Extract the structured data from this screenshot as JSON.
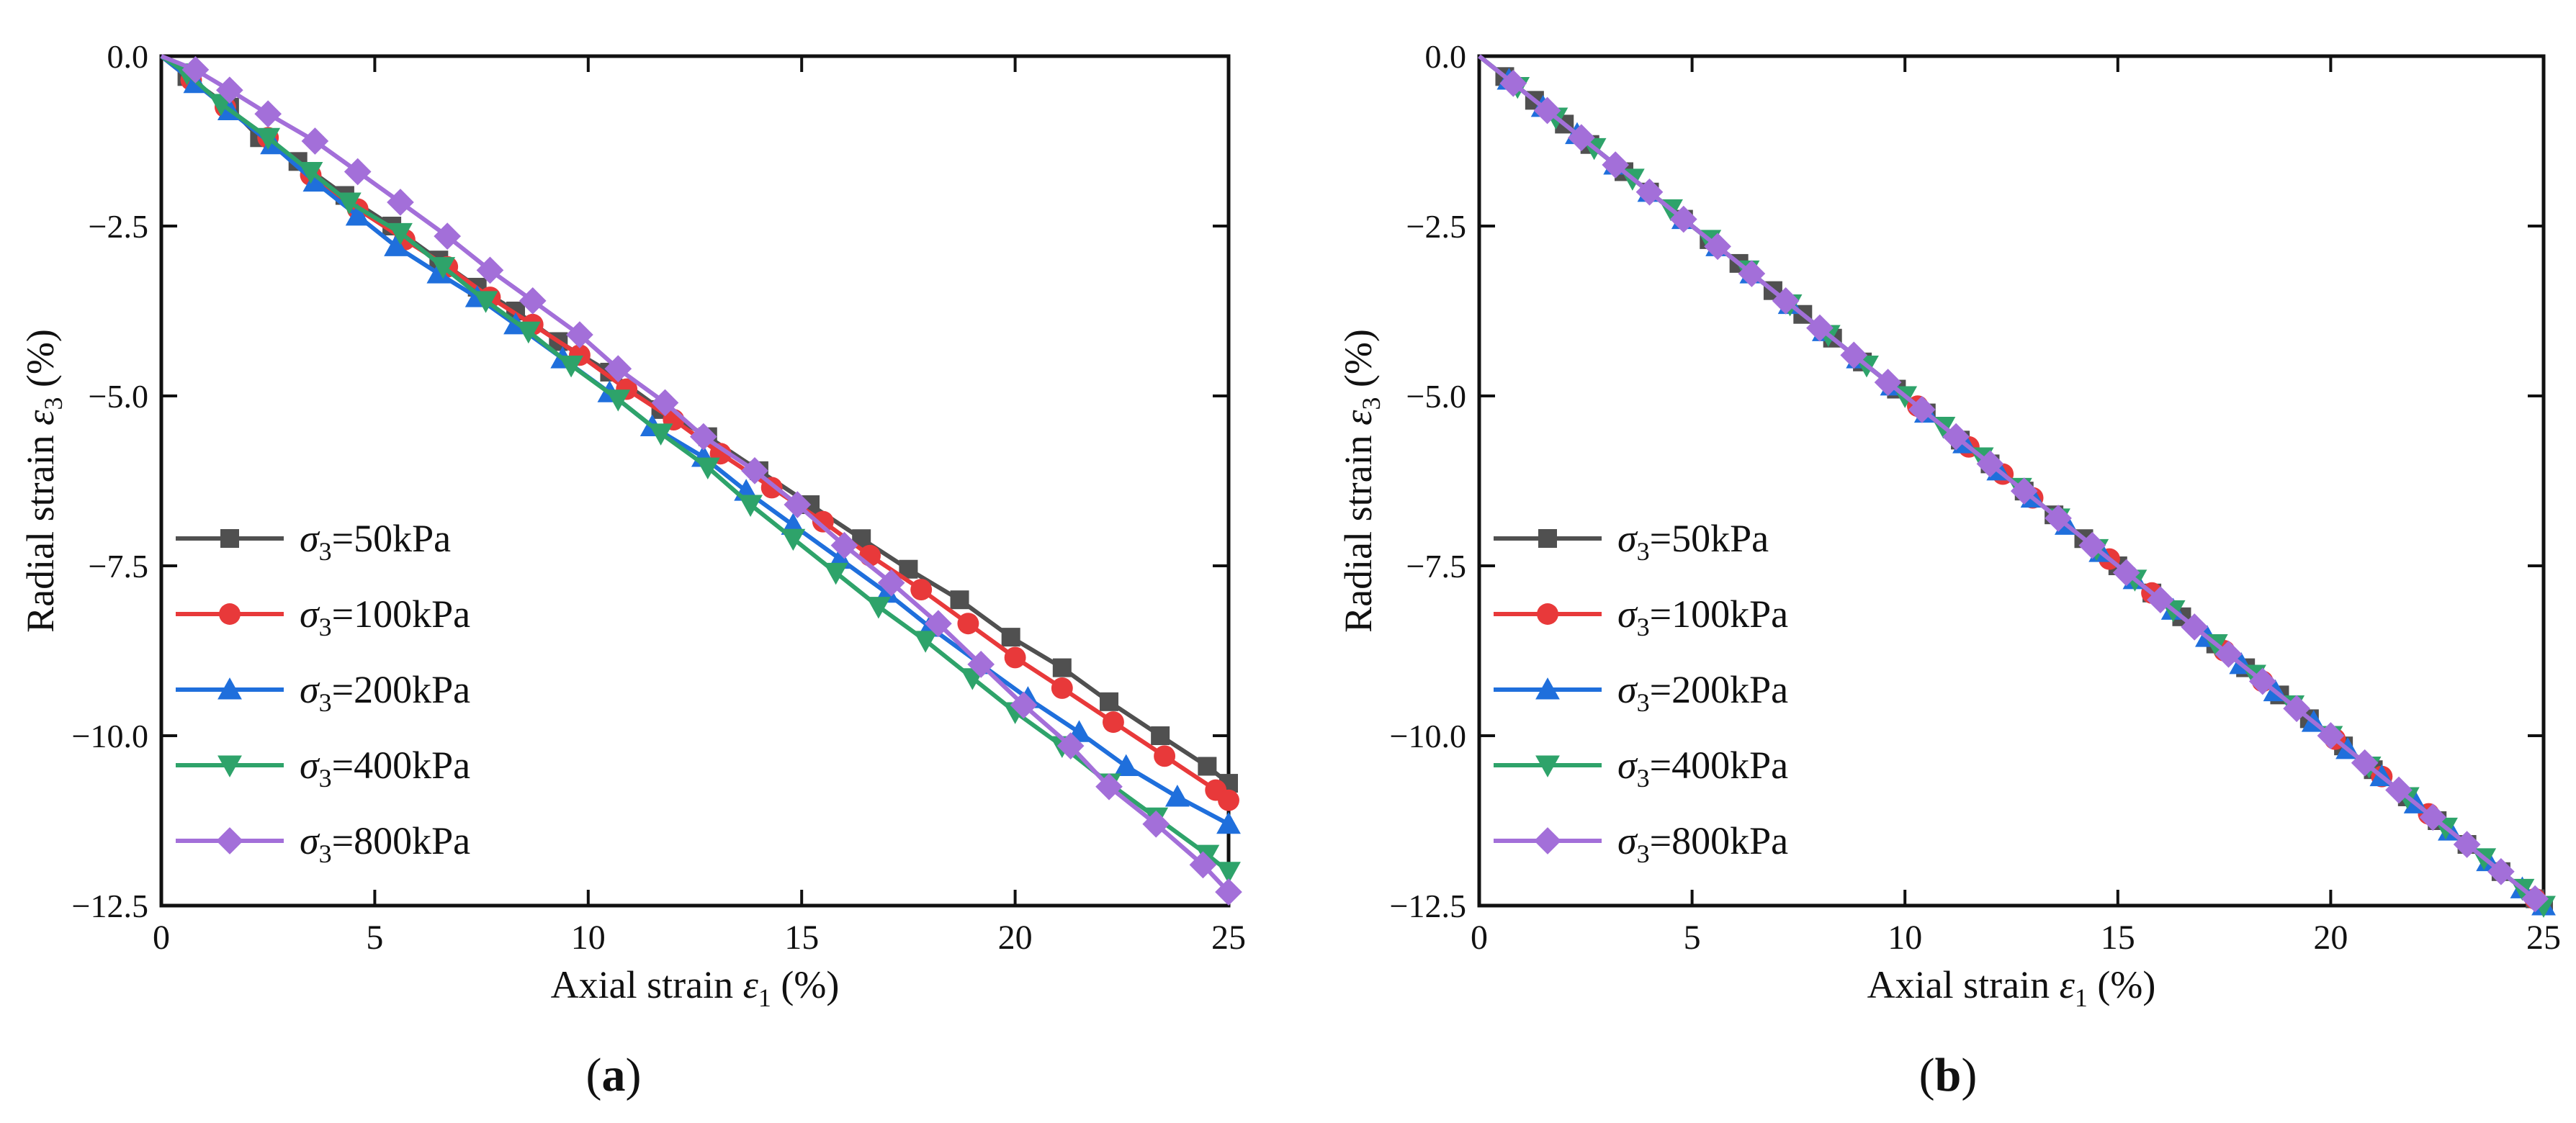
{
  "figure": {
    "panel_labels": [
      "a",
      "b"
    ]
  },
  "colors": {
    "s50": "#505050",
    "s100": "#e8393a",
    "s200": "#1f6fdc",
    "s400": "#2ea36a",
    "s800": "#a36fd9"
  },
  "chart_data": [
    {
      "type": "line",
      "panel": "a",
      "xlabel": "Axial strain  ε1 (%)",
      "ylabel": "Radial strain ε3 (%)",
      "xlim": [
        0,
        25
      ],
      "ylim": [
        -12.5,
        0
      ],
      "xticks": [
        0,
        5,
        10,
        15,
        20,
        25
      ],
      "yticks": [
        0,
        -2.5,
        -5,
        -7.5,
        -10,
        -12.5
      ],
      "xtick_labels": [
        "0",
        "5",
        "10",
        "15",
        "20",
        "25"
      ],
      "ytick_labels": [
        "0.0",
        "−2.5",
        "−5.0",
        "−7.5",
        "−10.0",
        "−12.5"
      ],
      "legend_position": "left",
      "series": [
        {
          "name": "σ3=50kPa",
          "sigma": "σ",
          "sub": "3",
          "rest": "=50kPa",
          "color": "#505050",
          "marker": "square",
          "x": [
            0,
            0.6,
            1.6,
            2.3,
            3.2,
            4.3,
            5.4,
            6.5,
            7.4,
            8.3,
            9.3,
            10.5,
            11.7,
            12.8,
            14.0,
            15.2,
            16.4,
            17.5,
            18.7,
            19.9,
            21.1,
            22.2,
            23.4,
            24.5,
            25.0
          ],
          "y": [
            0,
            -0.3,
            -0.75,
            -1.2,
            -1.55,
            -2.05,
            -2.5,
            -3.0,
            -3.4,
            -3.75,
            -4.2,
            -4.65,
            -5.2,
            -5.6,
            -6.1,
            -6.6,
            -7.1,
            -7.55,
            -8.0,
            -8.55,
            -9.0,
            -9.5,
            -10.0,
            -10.45,
            -10.7
          ]
        },
        {
          "name": "σ3=100kPa",
          "sigma": "σ",
          "sub": "3",
          "rest": "=100kPa",
          "color": "#e8393a",
          "marker": "circle",
          "x": [
            0,
            0.7,
            1.5,
            2.5,
            3.5,
            4.6,
            5.7,
            6.7,
            7.7,
            8.7,
            9.8,
            10.9,
            12.0,
            13.1,
            14.3,
            15.5,
            16.6,
            17.8,
            18.9,
            20.0,
            21.1,
            22.3,
            23.5,
            24.7,
            25.0
          ],
          "y": [
            0,
            -0.35,
            -0.75,
            -1.2,
            -1.75,
            -2.25,
            -2.7,
            -3.1,
            -3.55,
            -3.95,
            -4.4,
            -4.9,
            -5.35,
            -5.85,
            -6.35,
            -6.85,
            -7.35,
            -7.85,
            -8.35,
            -8.85,
            -9.3,
            -9.8,
            -10.3,
            -10.8,
            -10.95
          ]
        },
        {
          "name": "σ3=200kPa",
          "sigma": "σ",
          "sub": "3",
          "rest": "=200kPa",
          "color": "#1f6fdc",
          "marker": "triangle-up",
          "x": [
            0,
            0.8,
            1.6,
            2.6,
            3.6,
            4.6,
            5.5,
            6.5,
            7.4,
            8.3,
            9.4,
            10.5,
            11.5,
            12.7,
            13.7,
            14.8,
            15.9,
            17.0,
            18.0,
            19.2,
            20.3,
            21.5,
            22.6,
            23.8,
            25.0
          ],
          "y": [
            0,
            -0.4,
            -0.8,
            -1.3,
            -1.85,
            -2.35,
            -2.8,
            -3.2,
            -3.55,
            -3.95,
            -4.45,
            -4.95,
            -5.45,
            -5.9,
            -6.4,
            -6.9,
            -7.4,
            -7.9,
            -8.4,
            -8.95,
            -9.45,
            -9.95,
            -10.45,
            -10.9,
            -11.3
          ]
        },
        {
          "name": "σ3=400kPa",
          "sigma": "σ",
          "sub": "3",
          "rest": "=400kPa",
          "color": "#2ea36a",
          "marker": "triangle-down",
          "x": [
            0,
            0.6,
            1.4,
            2.5,
            3.5,
            4.4,
            5.6,
            6.6,
            7.6,
            8.6,
            9.6,
            10.7,
            11.7,
            12.8,
            13.8,
            14.8,
            15.8,
            16.8,
            17.9,
            19.0,
            20.0,
            21.1,
            22.2,
            23.3,
            24.5,
            25.0
          ],
          "y": [
            0,
            -0.25,
            -0.7,
            -1.2,
            -1.7,
            -2.15,
            -2.6,
            -3.1,
            -3.6,
            -4.05,
            -4.55,
            -5.05,
            -5.55,
            -6.05,
            -6.6,
            -7.1,
            -7.6,
            -8.1,
            -8.6,
            -9.15,
            -9.65,
            -10.15,
            -10.7,
            -11.2,
            -11.75,
            -12.0
          ]
        },
        {
          "name": "σ3=800kPa",
          "sigma": "σ",
          "sub": "3",
          "rest": "=800kPa",
          "color": "#a36fd9",
          "marker": "diamond",
          "x": [
            0,
            0.8,
            1.6,
            2.5,
            3.6,
            4.6,
            5.6,
            6.7,
            7.7,
            8.7,
            9.8,
            10.7,
            11.8,
            12.7,
            13.9,
            14.9,
            16.0,
            17.1,
            18.2,
            19.2,
            20.2,
            21.3,
            22.2,
            23.3,
            24.4,
            25.0
          ],
          "y": [
            0,
            -0.2,
            -0.5,
            -0.85,
            -1.25,
            -1.7,
            -2.15,
            -2.65,
            -3.15,
            -3.6,
            -4.1,
            -4.6,
            -5.1,
            -5.6,
            -6.1,
            -6.6,
            -7.2,
            -7.75,
            -8.35,
            -8.95,
            -9.55,
            -10.15,
            -10.75,
            -11.3,
            -11.9,
            -12.3
          ]
        }
      ]
    },
    {
      "type": "line",
      "panel": "b",
      "xlabel": "Axial strain  ε1 (%)",
      "ylabel": "Radial strain ε3 (%)",
      "xlim": [
        0,
        25
      ],
      "ylim": [
        -12.5,
        0
      ],
      "xticks": [
        0,
        5,
        10,
        15,
        20,
        25
      ],
      "yticks": [
        0,
        -2.5,
        -5,
        -7.5,
        -10,
        -12.5
      ],
      "xtick_labels": [
        "0",
        "5",
        "10",
        "15",
        "20",
        "25"
      ],
      "ytick_labels": [
        "0.0",
        "−2.5",
        "−5.0",
        "−7.5",
        "−10.0",
        "−12.5"
      ],
      "legend_position": "left",
      "series": [
        {
          "name": "σ3=50kPa",
          "sigma": "σ",
          "sub": "3",
          "rest": "=50kPa",
          "color": "#505050",
          "marker": "square",
          "x": [
            0,
            0.6,
            1.3,
            2.0,
            2.6,
            3.4,
            4.0,
            4.8,
            5.4,
            6.1,
            6.9,
            7.6,
            8.3,
            9.0,
            9.8,
            10.5,
            11.3,
            12.0,
            12.8,
            13.5,
            14.2,
            15.0,
            15.8,
            16.5,
            17.3,
            18.0,
            18.8,
            19.5,
            20.3,
            21.0,
            21.8,
            22.5,
            23.2,
            24.0,
            24.8,
            25.0
          ],
          "y": [
            0,
            -0.3,
            -0.65,
            -1.0,
            -1.3,
            -1.7,
            -2.0,
            -2.4,
            -2.7,
            -3.05,
            -3.45,
            -3.8,
            -4.15,
            -4.5,
            -4.9,
            -5.25,
            -5.65,
            -6.0,
            -6.4,
            -6.75,
            -7.1,
            -7.5,
            -7.9,
            -8.25,
            -8.65,
            -9.0,
            -9.4,
            -9.75,
            -10.15,
            -10.5,
            -10.9,
            -11.25,
            -11.6,
            -12.0,
            -12.4,
            -12.5
          ]
        },
        {
          "name": "σ3=100kPa",
          "sigma": "σ",
          "sub": "3",
          "rest": "=100kPa",
          "color": "#e8393a",
          "marker": "circle",
          "x": [
            0,
            10.3,
            11.5,
            12.3,
            13.0,
            14.8,
            15.8,
            17.5,
            18.4,
            20.1,
            21.2,
            22.3,
            24.8
          ],
          "y": [
            0,
            -5.15,
            -5.75,
            -6.15,
            -6.5,
            -7.4,
            -7.9,
            -8.75,
            -9.2,
            -10.05,
            -10.6,
            -11.15,
            -12.4
          ]
        },
        {
          "name": "σ3=200kPa",
          "sigma": "σ",
          "sub": "3",
          "rest": "=200kPa",
          "color": "#1f6fdc",
          "marker": "triangle-up",
          "x": [
            0,
            0.7,
            1.5,
            2.3,
            3.2,
            4.0,
            4.8,
            5.6,
            6.4,
            7.3,
            8.1,
            8.9,
            9.7,
            10.5,
            11.4,
            12.2,
            13.0,
            13.8,
            14.6,
            15.4,
            16.3,
            17.1,
            17.9,
            18.7,
            19.6,
            20.4,
            21.2,
            22.0,
            22.8,
            23.7,
            24.5,
            25.0
          ],
          "y": [
            0,
            -0.35,
            -0.75,
            -1.15,
            -1.6,
            -2.0,
            -2.4,
            -2.8,
            -3.2,
            -3.65,
            -4.05,
            -4.45,
            -4.85,
            -5.25,
            -5.7,
            -6.1,
            -6.5,
            -6.9,
            -7.3,
            -7.7,
            -8.15,
            -8.55,
            -8.95,
            -9.35,
            -9.8,
            -10.2,
            -10.6,
            -11.0,
            -11.4,
            -11.85,
            -12.25,
            -12.5
          ]
        },
        {
          "name": "σ3=400kPa",
          "sigma": "σ",
          "sub": "3",
          "rest": "=400kPa",
          "color": "#2ea36a",
          "marker": "triangle-down",
          "x": [
            0,
            0.9,
            1.8,
            2.7,
            3.6,
            4.5,
            5.4,
            6.3,
            7.3,
            8.2,
            9.1,
            10.0,
            10.9,
            11.8,
            12.7,
            13.6,
            14.5,
            15.4,
            16.3,
            17.3,
            18.2,
            19.1,
            20.0,
            20.9,
            21.8,
            22.7,
            23.6,
            24.5,
            25.0
          ],
          "y": [
            0,
            -0.45,
            -0.9,
            -1.35,
            -1.8,
            -2.25,
            -2.7,
            -3.15,
            -3.65,
            -4.1,
            -4.55,
            -5.0,
            -5.45,
            -5.9,
            -6.35,
            -6.8,
            -7.25,
            -7.7,
            -8.15,
            -8.65,
            -9.1,
            -9.55,
            -10.0,
            -10.45,
            -10.9,
            -11.35,
            -11.8,
            -12.25,
            -12.5
          ]
        },
        {
          "name": "σ3=800kPa",
          "sigma": "σ",
          "sub": "3",
          "rest": "=800kPa",
          "color": "#a36fd9",
          "marker": "diamond",
          "x": [
            0,
            0.8,
            1.6,
            2.4,
            3.2,
            4.0,
            4.8,
            5.6,
            6.4,
            7.2,
            8.0,
            8.8,
            9.6,
            10.4,
            11.2,
            12.0,
            12.8,
            13.6,
            14.4,
            15.2,
            16.0,
            16.8,
            17.6,
            18.4,
            19.2,
            20.0,
            20.8,
            21.6,
            22.4,
            23.2,
            24.0,
            24.8
          ],
          "y": [
            0,
            -0.4,
            -0.8,
            -1.2,
            -1.6,
            -2.0,
            -2.4,
            -2.8,
            -3.2,
            -3.6,
            -4.0,
            -4.4,
            -4.8,
            -5.2,
            -5.6,
            -6.0,
            -6.4,
            -6.8,
            -7.2,
            -7.6,
            -8.0,
            -8.4,
            -8.8,
            -9.2,
            -9.6,
            -10.0,
            -10.4,
            -10.8,
            -11.2,
            -11.6,
            -12.0,
            -12.4
          ]
        }
      ]
    }
  ]
}
